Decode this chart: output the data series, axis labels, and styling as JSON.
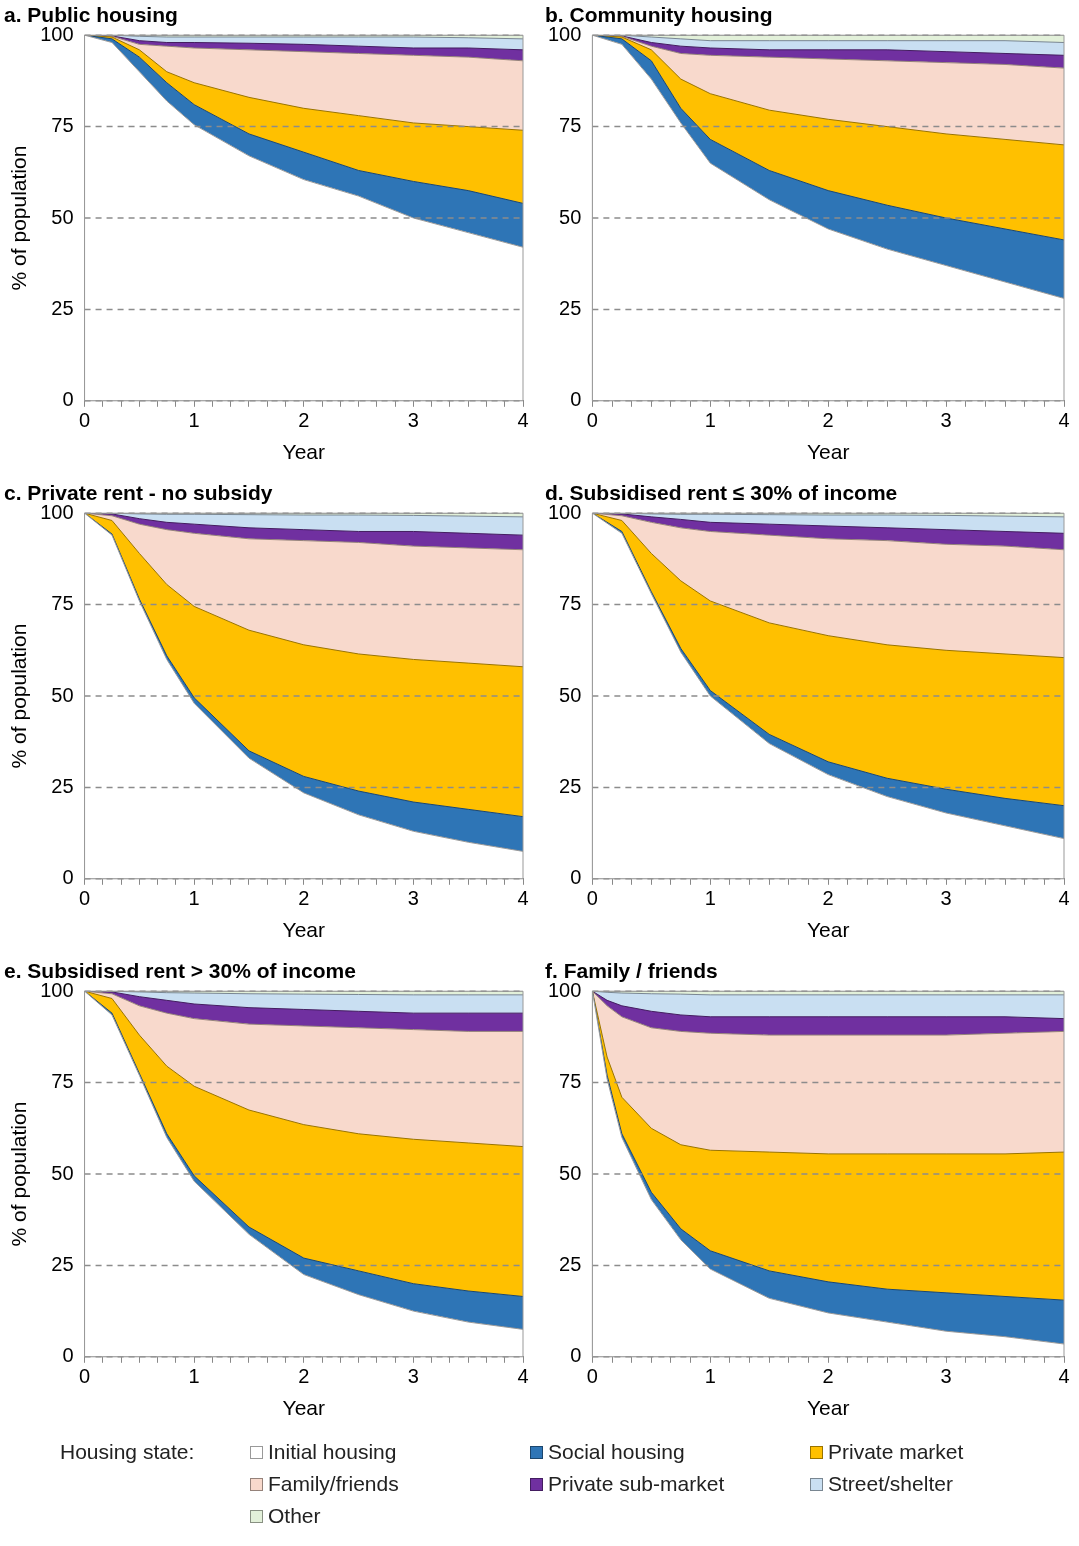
{
  "chart_data": [
    {
      "type": "area",
      "title": "a. Public housing",
      "xlabel": "Year",
      "ylabel": "% of population",
      "stacked": true,
      "grid": "y",
      "marker": "none",
      "xlim": [
        0,
        4
      ],
      "ylim": [
        0,
        100
      ],
      "yticks": [
        0,
        25,
        50,
        75,
        100
      ],
      "xticks": [
        0,
        {
          "value": 0.1667,
          "label": null
        },
        {
          "value": 0.3333,
          "label": null
        },
        {
          "value": 0.5,
          "label": null
        },
        {
          "value": 0.6667,
          "label": null
        },
        {
          "value": 0.8333,
          "label": null
        },
        1,
        {
          "value": 1.1667,
          "label": null
        },
        {
          "value": 1.3333,
          "label": null
        },
        {
          "value": 1.5,
          "label": null
        },
        {
          "value": 1.6667,
          "label": null
        },
        {
          "value": 1.8333,
          "label": null
        },
        2,
        {
          "value": 2.1667,
          "label": null
        },
        {
          "value": 2.3333,
          "label": null
        },
        {
          "value": 2.5,
          "label": null
        },
        {
          "value": 2.6667,
          "label": null
        },
        {
          "value": 2.8333,
          "label": null
        },
        3,
        {
          "value": 3.1667,
          "label": null
        },
        {
          "value": 3.3333,
          "label": null
        },
        {
          "value": 3.5,
          "label": null
        },
        {
          "value": 3.6667,
          "label": null
        },
        {
          "value": 3.8333,
          "label": null
        },
        4
      ],
      "x": [
        0,
        0.25,
        0.5,
        0.75,
        1,
        1.5,
        2,
        2.5,
        3,
        3.5,
        4
      ],
      "series": [
        {
          "color": "#ffffff",
          "values": [
            100,
            98,
            90,
            82,
            75.5,
            67,
            60.5,
            56,
            50,
            46,
            42
          ]
        },
        {
          "color": "#2e75b6",
          "values": [
            0,
            1,
            4,
            5,
            5.5,
            6,
            7.5,
            7,
            10,
            11.5,
            12
          ]
        },
        {
          "color": "#ffc000",
          "values": [
            0,
            0.5,
            2,
            3,
            6,
            10,
            12,
            15,
            16,
            17.5,
            20
          ]
        },
        {
          "color": "#f8d9cc",
          "values": [
            0,
            0.2,
            1.5,
            7,
            9.5,
            13,
            15.5,
            17,
            18.5,
            19,
            19
          ]
        },
        {
          "color": "#7030a0",
          "values": [
            0,
            0.1,
            1,
            1,
            1.5,
            1.8,
            2,
            2,
            2,
            2.5,
            3
          ]
        },
        {
          "color": "#c9dff2",
          "values": [
            0,
            0.2,
            1.2,
            1.5,
            1.5,
            1.7,
            2,
            2.5,
            3,
            2.8,
            3
          ]
        },
        {
          "color": "#e2f0d9",
          "values": [
            0,
            0,
            0.3,
            0.5,
            0.5,
            0.5,
            0.5,
            0.5,
            0.5,
            0.7,
            1
          ]
        }
      ]
    },
    {
      "type": "area",
      "title": "b. Community housing",
      "xlabel": "Year",
      "stacked": true,
      "grid": "y",
      "marker": "none",
      "xlim": [
        0,
        4
      ],
      "ylim": [
        0,
        100
      ],
      "yticks": [
        0,
        25,
        50,
        75,
        100
      ],
      "xticks": [
        0,
        {
          "value": 0.1667,
          "label": null
        },
        {
          "value": 0.3333,
          "label": null
        },
        {
          "value": 0.5,
          "label": null
        },
        {
          "value": 0.6667,
          "label": null
        },
        {
          "value": 0.8333,
          "label": null
        },
        1,
        {
          "value": 1.1667,
          "label": null
        },
        {
          "value": 1.3333,
          "label": null
        },
        {
          "value": 1.5,
          "label": null
        },
        {
          "value": 1.6667,
          "label": null
        },
        {
          "value": 1.8333,
          "label": null
        },
        2,
        {
          "value": 2.1667,
          "label": null
        },
        {
          "value": 2.3333,
          "label": null
        },
        {
          "value": 2.5,
          "label": null
        },
        {
          "value": 2.6667,
          "label": null
        },
        {
          "value": 2.8333,
          "label": null
        },
        3,
        {
          "value": 3.1667,
          "label": null
        },
        {
          "value": 3.3333,
          "label": null
        },
        {
          "value": 3.5,
          "label": null
        },
        {
          "value": 3.6667,
          "label": null
        },
        {
          "value": 3.8333,
          "label": null
        },
        4
      ],
      "x": [
        0,
        0.25,
        0.5,
        0.75,
        1,
        1.5,
        2,
        2.5,
        3,
        3.5,
        4
      ],
      "series": [
        {
          "color": "#ffffff",
          "values": [
            100,
            97.5,
            88,
            76,
            65,
            55,
            47,
            41.5,
            37,
            32.5,
            28
          ]
        },
        {
          "color": "#2e75b6",
          "values": [
            0,
            1.5,
            5,
            4,
            6.5,
            8,
            10.5,
            12,
            13,
            14.5,
            16
          ]
        },
        {
          "color": "#ffc000",
          "values": [
            0,
            0.5,
            3,
            8,
            12.5,
            16.5,
            19.5,
            21.5,
            23,
            24.5,
            26
          ]
        },
        {
          "color": "#f8d9cc",
          "values": [
            0,
            0.2,
            1,
            7,
            10.5,
            14.5,
            16.5,
            18,
            19.5,
            20.5,
            21
          ]
        },
        {
          "color": "#7030a0",
          "values": [
            0,
            0.1,
            1,
            2,
            2,
            2,
            2.5,
            3,
            3,
            3,
            3.5
          ]
        },
        {
          "color": "#c9dff2",
          "values": [
            0,
            0.2,
            1.5,
            2,
            2,
            2.5,
            2.5,
            2.5,
            3,
            3.5,
            3.5
          ]
        },
        {
          "color": "#e2f0d9",
          "values": [
            0,
            0,
            0.5,
            1,
            1.5,
            1.5,
            1.5,
            1.5,
            1.5,
            1.5,
            2
          ]
        }
      ]
    },
    {
      "type": "area",
      "title": "c. Private rent - no subsidy",
      "xlabel": "Year",
      "ylabel": "% of population",
      "stacked": true,
      "grid": "y",
      "marker": "none",
      "xlim": [
        0,
        4
      ],
      "ylim": [
        0,
        100
      ],
      "yticks": [
        0,
        25,
        50,
        75,
        100
      ],
      "xticks": [
        0,
        {
          "value": 0.1667,
          "label": null
        },
        {
          "value": 0.3333,
          "label": null
        },
        {
          "value": 0.5,
          "label": null
        },
        {
          "value": 0.6667,
          "label": null
        },
        {
          "value": 0.8333,
          "label": null
        },
        1,
        {
          "value": 1.1667,
          "label": null
        },
        {
          "value": 1.3333,
          "label": null
        },
        {
          "value": 1.5,
          "label": null
        },
        {
          "value": 1.6667,
          "label": null
        },
        {
          "value": 1.8333,
          "label": null
        },
        2,
        {
          "value": 2.1667,
          "label": null
        },
        {
          "value": 2.3333,
          "label": null
        },
        {
          "value": 2.5,
          "label": null
        },
        {
          "value": 2.6667,
          "label": null
        },
        {
          "value": 2.8333,
          "label": null
        },
        3,
        {
          "value": 3.1667,
          "label": null
        },
        {
          "value": 3.3333,
          "label": null
        },
        {
          "value": 3.5,
          "label": null
        },
        {
          "value": 3.6667,
          "label": null
        },
        {
          "value": 3.8333,
          "label": null
        },
        4
      ],
      "x": [
        0,
        0.25,
        0.5,
        0.75,
        1,
        1.5,
        2,
        2.5,
        3,
        3.5,
        4
      ],
      "series": [
        {
          "color": "#ffffff",
          "values": [
            100,
            94,
            76,
            60,
            48,
            33,
            23.5,
            17.5,
            13,
            10,
            7.5
          ]
        },
        {
          "color": "#2e75b6",
          "values": [
            0,
            0.3,
            0.5,
            1,
            1.5,
            2,
            4.5,
            6.5,
            8,
            9,
            9.5
          ]
        },
        {
          "color": "#ffc000",
          "values": [
            0,
            3.7,
            12.5,
            19.5,
            25,
            33,
            36,
            37.5,
            39,
            40,
            41
          ]
        },
        {
          "color": "#f8d9cc",
          "values": [
            0,
            1.3,
            8,
            15,
            20,
            25,
            28.5,
            30.5,
            31,
            31.5,
            32
          ]
        },
        {
          "color": "#7030a0",
          "values": [
            0,
            0.5,
            1.5,
            2,
            2.5,
            3,
            3,
            3,
            4,
            4,
            4
          ]
        },
        {
          "color": "#c9dff2",
          "values": [
            0,
            0.2,
            1.3,
            2.2,
            2.7,
            3.6,
            4,
            4.5,
            4.4,
            4.7,
            5
          ]
        },
        {
          "color": "#e2f0d9",
          "values": [
            0,
            0,
            0.2,
            0.3,
            0.3,
            0.4,
            0.5,
            0.5,
            0.6,
            0.8,
            1
          ]
        }
      ]
    },
    {
      "type": "area",
      "title": "d. Subsidised rent ≤ 30% of income",
      "xlabel": "Year",
      "stacked": true,
      "grid": "y",
      "marker": "none",
      "xlim": [
        0,
        4
      ],
      "ylim": [
        0,
        100
      ],
      "yticks": [
        0,
        25,
        50,
        75,
        100
      ],
      "xticks": [
        0,
        {
          "value": 0.1667,
          "label": null
        },
        {
          "value": 0.3333,
          "label": null
        },
        {
          "value": 0.5,
          "label": null
        },
        {
          "value": 0.6667,
          "label": null
        },
        {
          "value": 0.8333,
          "label": null
        },
        1,
        {
          "value": 1.1667,
          "label": null
        },
        {
          "value": 1.3333,
          "label": null
        },
        {
          "value": 1.5,
          "label": null
        },
        {
          "value": 1.6667,
          "label": null
        },
        {
          "value": 1.8333,
          "label": null
        },
        2,
        {
          "value": 2.1667,
          "label": null
        },
        {
          "value": 2.3333,
          "label": null
        },
        {
          "value": 2.5,
          "label": null
        },
        {
          "value": 2.6667,
          "label": null
        },
        {
          "value": 2.8333,
          "label": null
        },
        3,
        {
          "value": 3.1667,
          "label": null
        },
        {
          "value": 3.3333,
          "label": null
        },
        {
          "value": 3.5,
          "label": null
        },
        {
          "value": 3.6667,
          "label": null
        },
        {
          "value": 3.8333,
          "label": null
        },
        4
      ],
      "x": [
        0,
        0.25,
        0.5,
        0.75,
        1,
        1.5,
        2,
        2.5,
        3,
        3.5,
        4
      ],
      "series": [
        {
          "color": "#ffffff",
          "values": [
            100,
            94.5,
            78,
            62,
            50,
            37,
            28.5,
            22.5,
            18,
            14.5,
            11
          ]
        },
        {
          "color": "#2e75b6",
          "values": [
            0,
            0.5,
            0.5,
            1,
            1.5,
            2.5,
            3.5,
            5,
            6.5,
            7.5,
            9
          ]
        },
        {
          "color": "#ffc000",
          "values": [
            0,
            3,
            10.5,
            18.5,
            24.5,
            30.5,
            34.5,
            36.5,
            38,
            39.5,
            40.5
          ]
        },
        {
          "color": "#f8d9cc",
          "values": [
            0,
            1.3,
            8.5,
            14.5,
            19,
            24,
            26.5,
            28.5,
            29,
            29.5,
            29.5
          ]
        },
        {
          "color": "#7030a0",
          "values": [
            0,
            0.5,
            1.5,
            2.3,
            2.5,
            3,
            3.5,
            3.5,
            4,
            4,
            4.5
          ]
        },
        {
          "color": "#c9dff2",
          "values": [
            0,
            0.2,
            0.8,
            1.4,
            2.2,
            2.6,
            3,
            3.5,
            3.9,
            4.2,
            4.5
          ]
        },
        {
          "color": "#e2f0d9",
          "values": [
            0,
            0,
            0.2,
            0.3,
            0.3,
            0.4,
            0.5,
            0.5,
            0.6,
            0.8,
            1
          ]
        }
      ]
    },
    {
      "type": "area",
      "title": "e. Subsidised rent > 30% of income",
      "xlabel": "Year",
      "ylabel": "% of population",
      "stacked": true,
      "grid": "y",
      "marker": "none",
      "xlim": [
        0,
        4
      ],
      "ylim": [
        0,
        100
      ],
      "yticks": [
        0,
        25,
        50,
        75,
        100
      ],
      "xticks": [
        0,
        {
          "value": 0.1667,
          "label": null
        },
        {
          "value": 0.3333,
          "label": null
        },
        {
          "value": 0.5,
          "label": null
        },
        {
          "value": 0.6667,
          "label": null
        },
        {
          "value": 0.8333,
          "label": null
        },
        1,
        {
          "value": 1.1667,
          "label": null
        },
        {
          "value": 1.3333,
          "label": null
        },
        {
          "value": 1.5,
          "label": null
        },
        {
          "value": 1.6667,
          "label": null
        },
        {
          "value": 1.8333,
          "label": null
        },
        2,
        {
          "value": 2.1667,
          "label": null
        },
        {
          "value": 2.3333,
          "label": null
        },
        {
          "value": 2.5,
          "label": null
        },
        {
          "value": 2.6667,
          "label": null
        },
        {
          "value": 2.8333,
          "label": null
        },
        3,
        {
          "value": 3.1667,
          "label": null
        },
        {
          "value": 3.3333,
          "label": null
        },
        {
          "value": 3.5,
          "label": null
        },
        {
          "value": 3.6667,
          "label": null
        },
        {
          "value": 3.8333,
          "label": null
        },
        4
      ],
      "x": [
        0,
        0.25,
        0.5,
        0.75,
        1,
        1.5,
        2,
        2.5,
        3,
        3.5,
        4
      ],
      "series": [
        {
          "color": "#ffffff",
          "values": [
            100,
            93.5,
            77,
            60,
            48,
            33.5,
            22.5,
            17,
            12.5,
            9.5,
            7.5
          ]
        },
        {
          "color": "#2e75b6",
          "values": [
            0,
            0.5,
            0.5,
            1,
            1.5,
            2,
            4.5,
            6.5,
            7.5,
            8.5,
            9
          ]
        },
        {
          "color": "#ffc000",
          "values": [
            0,
            4,
            10.5,
            18.5,
            24.5,
            32,
            36.5,
            37.5,
            39.5,
            40.5,
            41
          ]
        },
        {
          "color": "#f8d9cc",
          "values": [
            0,
            1.3,
            8,
            14.5,
            18.5,
            23.5,
            27,
            29,
            30,
            30.5,
            31.5
          ]
        },
        {
          "color": "#7030a0",
          "values": [
            0,
            0.5,
            2.5,
            3.5,
            4,
            4.5,
            4.5,
            4.5,
            4.5,
            5,
            5
          ]
        },
        {
          "color": "#c9dff2",
          "values": [
            0,
            0.2,
            1.3,
            2.1,
            3,
            3.8,
            4.2,
            4.6,
            5,
            5,
            5
          ]
        },
        {
          "color": "#e2f0d9",
          "values": [
            0,
            0,
            0.2,
            0.4,
            0.5,
            0.7,
            0.8,
            0.9,
            1,
            1,
            1
          ]
        }
      ]
    },
    {
      "type": "area",
      "title": "f. Family / friends",
      "xlabel": "Year",
      "stacked": true,
      "grid": "y",
      "marker": "none",
      "legend": "bottom",
      "legend_title": "Housing state:",
      "xlim": [
        0,
        4
      ],
      "ylim": [
        0,
        100
      ],
      "yticks": [
        0,
        25,
        50,
        75,
        100
      ],
      "xticks": [
        0,
        {
          "value": 0.1667,
          "label": null
        },
        {
          "value": 0.3333,
          "label": null
        },
        {
          "value": 0.5,
          "label": null
        },
        {
          "value": 0.6667,
          "label": null
        },
        {
          "value": 0.8333,
          "label": null
        },
        1,
        {
          "value": 1.1667,
          "label": null
        },
        {
          "value": 1.3333,
          "label": null
        },
        {
          "value": 1.5,
          "label": null
        },
        {
          "value": 1.6667,
          "label": null
        },
        {
          "value": 1.8333,
          "label": null
        },
        2,
        {
          "value": 2.1667,
          "label": null
        },
        {
          "value": 2.3333,
          "label": null
        },
        {
          "value": 2.5,
          "label": null
        },
        {
          "value": 2.6667,
          "label": null
        },
        {
          "value": 2.8333,
          "label": null
        },
        3,
        {
          "value": 3.1667,
          "label": null
        },
        {
          "value": 3.3333,
          "label": null
        },
        {
          "value": 3.5,
          "label": null
        },
        {
          "value": 3.6667,
          "label": null
        },
        {
          "value": 3.8333,
          "label": null
        },
        4
      ],
      "x": [
        0,
        0.125,
        0.25,
        0.5,
        0.75,
        1,
        1.5,
        2,
        2.5,
        3,
        3.5,
        4
      ],
      "series": [
        {
          "name": "Initial housing",
          "color": "#ffffff",
          "values": [
            100,
            76,
            60,
            43,
            32,
            24,
            16,
            12,
            9.5,
            7,
            5.5,
            3.5
          ]
        },
        {
          "name": "Social housing",
          "color": "#2e75b6",
          "values": [
            0,
            1,
            1,
            2,
            3,
            5,
            7.5,
            8.5,
            9,
            10.5,
            11,
            12
          ]
        },
        {
          "name": "Private market",
          "color": "#ffc000",
          "values": [
            0,
            5,
            10,
            17.5,
            23,
            27.5,
            32.5,
            35,
            37,
            38,
            39,
            40.5
          ]
        },
        {
          "name": "Family/friends",
          "color": "#f8d9cc",
          "values": [
            0,
            14,
            22,
            27.5,
            31,
            32,
            32,
            32.5,
            32.5,
            32.5,
            33,
            33
          ]
        },
        {
          "name": "Private sub-market",
          "color": "#7030a0",
          "values": [
            0,
            1.5,
            3,
            4.5,
            4.5,
            4.5,
            5,
            5,
            5,
            5,
            4.5,
            3.5
          ]
        },
        {
          "name": "Street/shelter",
          "color": "#c9dff2",
          "values": [
            0,
            2.2,
            3.5,
            4.8,
            5.7,
            6,
            6,
            6,
            6,
            6,
            6,
            6.5
          ]
        },
        {
          "name": "Other",
          "color": "#e2f0d9",
          "values": [
            0,
            0.3,
            0.5,
            0.7,
            0.8,
            1,
            1,
            1,
            1,
            1,
            1,
            1
          ]
        }
      ]
    }
  ]
}
